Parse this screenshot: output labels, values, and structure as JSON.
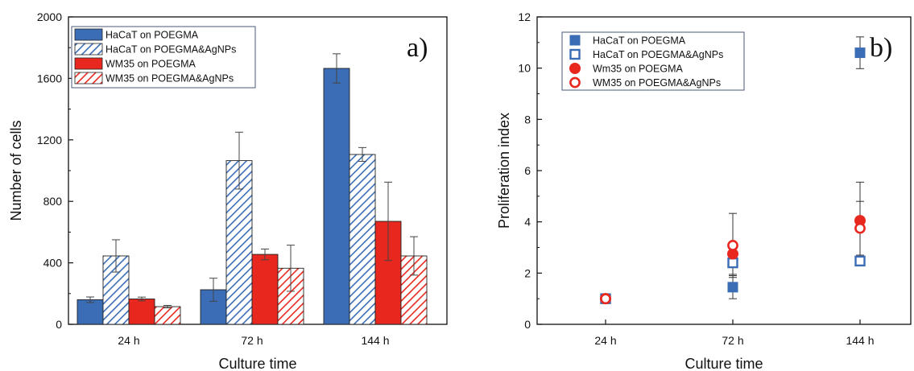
{
  "colors": {
    "blue": "#3a6db5",
    "red": "#e8281f",
    "axis": "#111111",
    "legend_border": "#4a5a7a"
  },
  "chart_data": [
    {
      "type": "bar",
      "panel_label": "a)",
      "xlabel": "Culture time",
      "ylabel": "Number of cells",
      "ylim": [
        0,
        2000
      ],
      "yticks": [
        "0",
        "400",
        "800",
        "1200",
        "1600",
        "2000"
      ],
      "categories": [
        "24 h",
        "72 h",
        "144 h"
      ],
      "grid": false,
      "legend_position": "top-left",
      "series": [
        {
          "name": "HaCaT on POEGMA",
          "color": "#3a6db5",
          "fill": "solid",
          "values": [
            160,
            225,
            1665
          ],
          "errors": [
            18,
            75,
            95
          ]
        },
        {
          "name": "HaCaT on POEGMA&AgNPs",
          "color": "#3a6db5",
          "fill": "hatched",
          "values": [
            445,
            1065,
            1105
          ],
          "errors": [
            105,
            185,
            45
          ]
        },
        {
          "name": "WM35 on POEGMA",
          "color": "#e8281f",
          "fill": "solid",
          "values": [
            165,
            455,
            670
          ],
          "errors": [
            12,
            35,
            255
          ]
        },
        {
          "name": "WM35 on POEGMA&AgNPs",
          "color": "#e8281f",
          "fill": "hatched",
          "values": [
            115,
            365,
            445
          ],
          "errors": [
            8,
            150,
            125
          ]
        }
      ]
    },
    {
      "type": "scatter",
      "panel_label": "b)",
      "xlabel": "Culture time",
      "ylabel": "Proliferation index",
      "ylim": [
        0,
        12
      ],
      "yticks": [
        "0",
        "2",
        "4",
        "6",
        "8",
        "10",
        "12"
      ],
      "categories": [
        "24 h",
        "72 h",
        "144 h"
      ],
      "grid": false,
      "legend_position": "top-left",
      "series": [
        {
          "name": "HaCaT on POEGMA",
          "color": "#3a6db5",
          "marker": "filled-square",
          "values": [
            1.0,
            1.45,
            10.6
          ],
          "errors": [
            0.1,
            0.45,
            0.62
          ]
        },
        {
          "name": "HaCaT on POEGMA&AgNPs",
          "color": "#3a6db5",
          "marker": "open-square",
          "values": [
            1.0,
            2.4,
            2.47
          ],
          "errors": [
            0.1,
            0.45,
            0.08
          ]
        },
        {
          "name": "Wm35 on POEGMA",
          "color": "#e8281f",
          "marker": "filled-circle",
          "values": [
            1.0,
            2.75,
            4.05
          ],
          "errors": [
            0.07,
            0.2,
            1.5
          ]
        },
        {
          "name": "WM35 on POEGMA&AgNPs",
          "color": "#e8281f",
          "marker": "open-circle",
          "values": [
            1.0,
            3.08,
            3.75
          ],
          "errors": [
            0.07,
            1.25,
            1.05
          ]
        }
      ]
    }
  ]
}
